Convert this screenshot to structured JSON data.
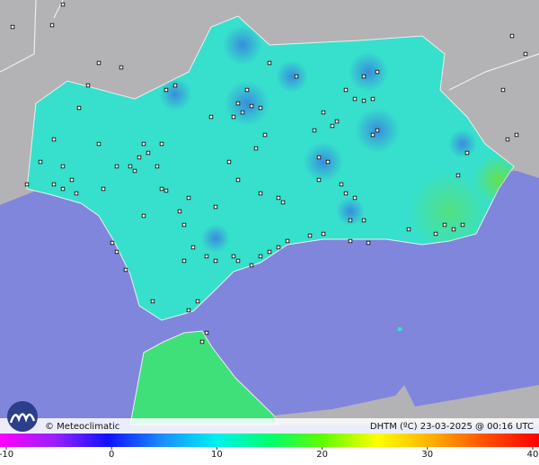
{
  "brand": "© Meteoclimatic",
  "caption": "DHTM (ºC) 23-03-2025 @ 00:16 UTC",
  "legend": {
    "ticks": [
      -10,
      0,
      10,
      20,
      30,
      40
    ],
    "lim": [
      -10,
      40
    ]
  }
}
